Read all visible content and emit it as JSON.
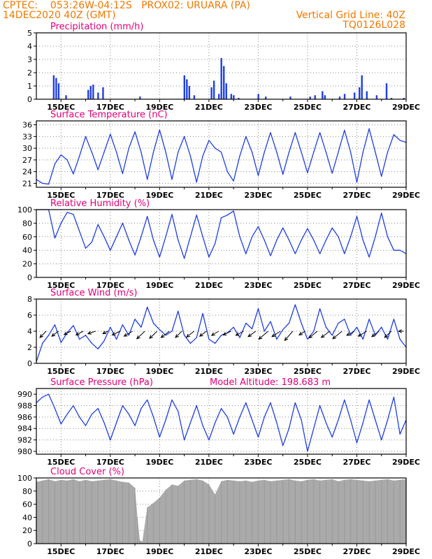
{
  "header": {
    "line1_left": "CPTEC:    053:26W-04:12S   PROX02: URUARA (PA)",
    "line2_left": "14DEC2020 40Z (GMT)",
    "line2_right": "Vertical Grid Line: 40Z",
    "line3_right": "TQ0126L028"
  },
  "colors": {
    "header": "#f07800",
    "panel_title": "#e0007a",
    "series": "#1f3fe0",
    "cloud": "#aaaaaa",
    "grid": "#888888",
    "arrow": "#000000"
  },
  "x_axis": {
    "start_day": 14,
    "end_day": 29,
    "ticks": [
      "15DEC",
      "17DEC",
      "19DEC",
      "21DEC",
      "23DEC",
      "25DEC",
      "27DEC",
      "29DEC"
    ]
  },
  "chart_data": [
    {
      "type": "bar",
      "title": "Precipitation (mm/h)",
      "ylim": [
        0,
        5
      ],
      "yticks": [
        "0",
        "1",
        "2",
        "3",
        "4",
        "5"
      ],
      "x": [
        14.7,
        14.8,
        14.9,
        15.2,
        16.1,
        16.2,
        16.3,
        16.5,
        16.7,
        18.2,
        20.0,
        20.1,
        20.2,
        20.4,
        21.1,
        21.2,
        21.4,
        21.5,
        21.6,
        21.7,
        21.9,
        22.0,
        22.2,
        23.0,
        23.3,
        24.3,
        25.1,
        25.3,
        25.6,
        25.7,
        26.3,
        26.5,
        26.9,
        27.1,
        27.2,
        27.4,
        27.8,
        28.2,
        28.4,
        28.9
      ],
      "values": [
        1.8,
        1.6,
        1.2,
        0.3,
        0.7,
        1.0,
        1.1,
        0.5,
        0.9,
        0.2,
        1.8,
        1.5,
        1.0,
        0.3,
        0.9,
        1.4,
        0.4,
        3.1,
        2.5,
        1.2,
        0.4,
        0.3,
        0.1,
        0.4,
        0.2,
        0.2,
        0.2,
        0.3,
        0.6,
        0.3,
        0.2,
        0.4,
        0.5,
        0.9,
        1.8,
        0.6,
        0.3,
        1.2,
        0.1,
        0.1
      ]
    },
    {
      "type": "line",
      "title": "Surface Temperature (nC)",
      "ylim": [
        20,
        37
      ],
      "yticks": [
        "21",
        "24",
        "27",
        "30",
        "33",
        "36"
      ],
      "x": [
        14.0,
        14.25,
        14.5,
        14.75,
        15.0,
        15.25,
        15.5,
        15.75,
        16.0,
        16.25,
        16.5,
        16.75,
        17.0,
        17.25,
        17.5,
        17.75,
        18.0,
        18.25,
        18.5,
        18.75,
        19.0,
        19.25,
        19.5,
        19.75,
        20.0,
        20.25,
        20.5,
        20.75,
        21.0,
        21.25,
        21.5,
        21.75,
        22.0,
        22.25,
        22.5,
        22.75,
        23.0,
        23.25,
        23.5,
        23.75,
        24.0,
        24.25,
        24.5,
        24.75,
        25.0,
        25.25,
        25.5,
        25.75,
        26.0,
        26.25,
        26.5,
        26.75,
        27.0,
        27.25,
        27.5,
        27.75,
        28.0,
        28.25,
        28.5,
        28.75,
        29.0
      ],
      "values": [
        22,
        21,
        20.8,
        26,
        28.3,
        27,
        23.4,
        28,
        33,
        29,
        24.5,
        29,
        33.6,
        29,
        23.5,
        30,
        34.2,
        29,
        22,
        29,
        34.7,
        29,
        22,
        29,
        33,
        28,
        21.3,
        28,
        32,
        30,
        29,
        24,
        21.6,
        28,
        33,
        29,
        23,
        29,
        34,
        29,
        23.3,
        29,
        34,
        29,
        23.7,
        29,
        34,
        29,
        23.6,
        29,
        34.6,
        29,
        21.3,
        29,
        35,
        29,
        22.8,
        29,
        33.5,
        32,
        31.5
      ]
    },
    {
      "type": "line",
      "title": "Relative Humidity (%)",
      "ylim": [
        0,
        100
      ],
      "yticks": [
        "0",
        "20",
        "40",
        "60",
        "80",
        "100"
      ],
      "x": [
        14.0,
        14.25,
        14.5,
        14.75,
        15.0,
        15.25,
        15.5,
        15.75,
        16.0,
        16.25,
        16.5,
        16.75,
        17.0,
        17.25,
        17.5,
        17.75,
        18.0,
        18.25,
        18.5,
        18.75,
        19.0,
        19.25,
        19.5,
        19.75,
        20.0,
        20.25,
        20.5,
        20.75,
        21.0,
        21.25,
        21.5,
        21.75,
        22.0,
        22.25,
        22.5,
        22.75,
        23.0,
        23.25,
        23.5,
        23.75,
        24.0,
        24.25,
        24.5,
        24.75,
        25.0,
        25.25,
        25.5,
        25.75,
        26.0,
        26.25,
        26.5,
        26.75,
        27.0,
        27.25,
        27.5,
        27.75,
        28.0,
        28.25,
        28.5,
        28.75,
        29.0
      ],
      "values": [
        100,
        100,
        100,
        58,
        80,
        96,
        93,
        68,
        43,
        52,
        78,
        60,
        40,
        60,
        80,
        55,
        33,
        60,
        90,
        55,
        30,
        60,
        93,
        55,
        28,
        60,
        92,
        60,
        30,
        50,
        88,
        92,
        98,
        60,
        35,
        60,
        75,
        55,
        32,
        55,
        73,
        55,
        35,
        55,
        72,
        55,
        35,
        55,
        73,
        60,
        35,
        60,
        90,
        55,
        30,
        60,
        95,
        60,
        40,
        40,
        35
      ]
    },
    {
      "type": "line",
      "title": "Surface Wind (m/s)",
      "ylim": [
        0,
        8
      ],
      "yticks": [
        "0",
        "2",
        "4",
        "6",
        "8"
      ],
      "x": [
        14.0,
        14.25,
        14.5,
        14.75,
        15.0,
        15.25,
        15.5,
        15.75,
        16.0,
        16.25,
        16.5,
        16.75,
        17.0,
        17.25,
        17.5,
        17.75,
        18.0,
        18.25,
        18.5,
        18.75,
        19.0,
        19.25,
        19.5,
        19.75,
        20.0,
        20.25,
        20.5,
        20.75,
        21.0,
        21.25,
        21.5,
        21.75,
        22.0,
        22.25,
        22.5,
        22.75,
        23.0,
        23.25,
        23.5,
        23.75,
        24.0,
        24.25,
        24.5,
        24.75,
        25.0,
        25.25,
        25.5,
        25.75,
        26.0,
        26.25,
        26.5,
        26.75,
        27.0,
        27.25,
        27.5,
        27.75,
        28.0,
        28.25,
        28.5,
        28.75,
        29.0
      ],
      "values": [
        0.2,
        2.5,
        3.5,
        4.8,
        2.6,
        3.8,
        4.7,
        3.0,
        3.5,
        2.5,
        1.8,
        2.8,
        4.5,
        3.0,
        4.8,
        3.5,
        5.5,
        4.5,
        7.0,
        5.0,
        4.2,
        3.5,
        4.0,
        6.5,
        3.5,
        2.5,
        3.2,
        6.2,
        3.0,
        2.5,
        3.5,
        3.8,
        4.5,
        3.2,
        5.0,
        4.3,
        6.8,
        4.0,
        5.2,
        3.0,
        4.2,
        5.0,
        7.3,
        5.0,
        3.0,
        4.0,
        6.8,
        4.5,
        3.5,
        5.0,
        5.5,
        3.5,
        4.5,
        3.0,
        5.5,
        3.5,
        4.5,
        3.0,
        5.5,
        3.0,
        2.0
      ],
      "arrows": [
        {
          "x": 14.4,
          "u": -1.5,
          "v": -1.5
        },
        {
          "x": 14.9,
          "u": -1.6,
          "v": -1.2
        },
        {
          "x": 15.4,
          "u": -1.6,
          "v": -0.8
        },
        {
          "x": 15.9,
          "u": -1.7,
          "v": -0.9
        },
        {
          "x": 16.4,
          "u": -1.8,
          "v": -0.6
        },
        {
          "x": 16.9,
          "u": -1.2,
          "v": -0.6
        },
        {
          "x": 17.4,
          "u": -1.9,
          "v": -0.9
        },
        {
          "x": 17.9,
          "u": -2.0,
          "v": -1.2
        },
        {
          "x": 18.4,
          "u": -1.9,
          "v": -1.8
        },
        {
          "x": 18.9,
          "u": -1.8,
          "v": -1.7
        },
        {
          "x": 19.4,
          "u": -2.0,
          "v": -1.5
        },
        {
          "x": 19.9,
          "u": -1.5,
          "v": -1.5
        },
        {
          "x": 20.4,
          "u": -1.8,
          "v": -1.4
        },
        {
          "x": 20.9,
          "u": -1.6,
          "v": -1.2
        },
        {
          "x": 21.4,
          "u": -1.7,
          "v": -1.0
        },
        {
          "x": 21.9,
          "u": -1.9,
          "v": -0.9
        },
        {
          "x": 22.4,
          "u": -1.8,
          "v": -1.0
        },
        {
          "x": 22.9,
          "u": -1.8,
          "v": -1.3
        },
        {
          "x": 23.4,
          "u": -2.2,
          "v": -1.9
        },
        {
          "x": 23.9,
          "u": -2.0,
          "v": -1.3
        },
        {
          "x": 24.4,
          "u": -1.9,
          "v": -2.2
        },
        {
          "x": 24.9,
          "u": -1.4,
          "v": -0.9
        },
        {
          "x": 25.4,
          "u": -2.0,
          "v": -1.6
        },
        {
          "x": 25.9,
          "u": -2.0,
          "v": -1.5
        },
        {
          "x": 26.4,
          "u": -2.2,
          "v": -1.8
        },
        {
          "x": 26.9,
          "u": -1.8,
          "v": -1.0
        },
        {
          "x": 27.4,
          "u": -2.0,
          "v": -1.2
        },
        {
          "x": 27.9,
          "u": -1.7,
          "v": -1.3
        },
        {
          "x": 28.4,
          "u": -1.6,
          "v": -1.5
        },
        {
          "x": 28.9,
          "u": -1.2,
          "v": 0.0
        }
      ]
    },
    {
      "type": "line",
      "title": "Surface Pressure (hPa)",
      "subtitle": "Model Altitude: 198.683 m",
      "ylim": [
        979.5,
        991
      ],
      "yticks": [
        "980",
        "982",
        "984",
        "986",
        "988",
        "990"
      ],
      "x": [
        14.0,
        14.25,
        14.5,
        14.75,
        15.0,
        15.25,
        15.5,
        15.75,
        16.0,
        16.25,
        16.5,
        16.75,
        17.0,
        17.25,
        17.5,
        17.75,
        18.0,
        18.25,
        18.5,
        18.75,
        19.0,
        19.25,
        19.5,
        19.75,
        20.0,
        20.25,
        20.5,
        20.75,
        21.0,
        21.25,
        21.5,
        21.75,
        22.0,
        22.25,
        22.5,
        22.75,
        23.0,
        23.25,
        23.5,
        23.75,
        24.0,
        24.25,
        24.5,
        24.75,
        25.0,
        25.25,
        25.5,
        25.75,
        26.0,
        26.25,
        26.5,
        26.75,
        27.0,
        27.25,
        27.5,
        27.75,
        28.0,
        28.25,
        28.5,
        28.75,
        29.0
      ],
      "values": [
        988.5,
        989.5,
        990,
        987.5,
        984.8,
        986.5,
        988,
        986,
        984.5,
        986.5,
        987.5,
        985,
        982,
        985,
        988,
        986.5,
        984.5,
        987.5,
        989,
        986,
        982.5,
        985.5,
        989,
        987,
        982,
        985,
        988,
        984.5,
        982,
        985,
        987.5,
        986,
        983,
        986,
        988.5,
        985.5,
        982.5,
        986,
        988.5,
        985,
        981,
        984,
        988.5,
        985.5,
        980,
        984,
        988,
        985,
        982.5,
        985.5,
        989,
        985.5,
        981.5,
        985,
        989,
        985.5,
        982,
        985.5,
        989.5,
        983,
        985.5
      ]
    },
    {
      "type": "area",
      "title": "Cloud Cover (%)",
      "ylim": [
        0,
        100
      ],
      "yticks": [
        "0",
        "20",
        "40",
        "60",
        "80",
        "100"
      ],
      "x": [
        14.0,
        14.25,
        14.5,
        14.75,
        15.0,
        15.25,
        15.5,
        15.75,
        16.0,
        16.25,
        16.5,
        16.75,
        17.0,
        17.25,
        17.5,
        17.75,
        18.0,
        18.1,
        18.2,
        18.3,
        18.5,
        18.75,
        19.0,
        19.25,
        19.5,
        19.75,
        20.0,
        20.25,
        20.5,
        20.75,
        21.0,
        21.25,
        21.5,
        21.75,
        22.0,
        22.25,
        22.5,
        22.75,
        23.0,
        23.25,
        23.5,
        23.75,
        24.0,
        24.25,
        24.5,
        24.75,
        25.0,
        25.25,
        25.5,
        25.75,
        26.0,
        26.25,
        26.5,
        26.75,
        27.0,
        27.25,
        27.5,
        27.75,
        28.0,
        28.25,
        28.5,
        28.75,
        29.0
      ],
      "values": [
        94,
        96,
        98,
        95,
        97,
        96,
        98,
        95,
        97,
        95,
        96,
        97,
        98,
        96,
        94,
        93,
        85,
        40,
        5,
        3,
        55,
        62,
        70,
        82,
        90,
        88,
        96,
        97,
        98,
        96,
        90,
        75,
        95,
        97,
        96,
        95,
        96,
        94,
        96,
        97,
        95,
        96,
        97,
        98,
        96,
        95,
        97,
        98,
        96,
        97,
        98,
        95,
        97,
        98,
        97,
        96,
        95,
        96,
        97,
        98,
        96,
        97,
        98
      ]
    }
  ]
}
